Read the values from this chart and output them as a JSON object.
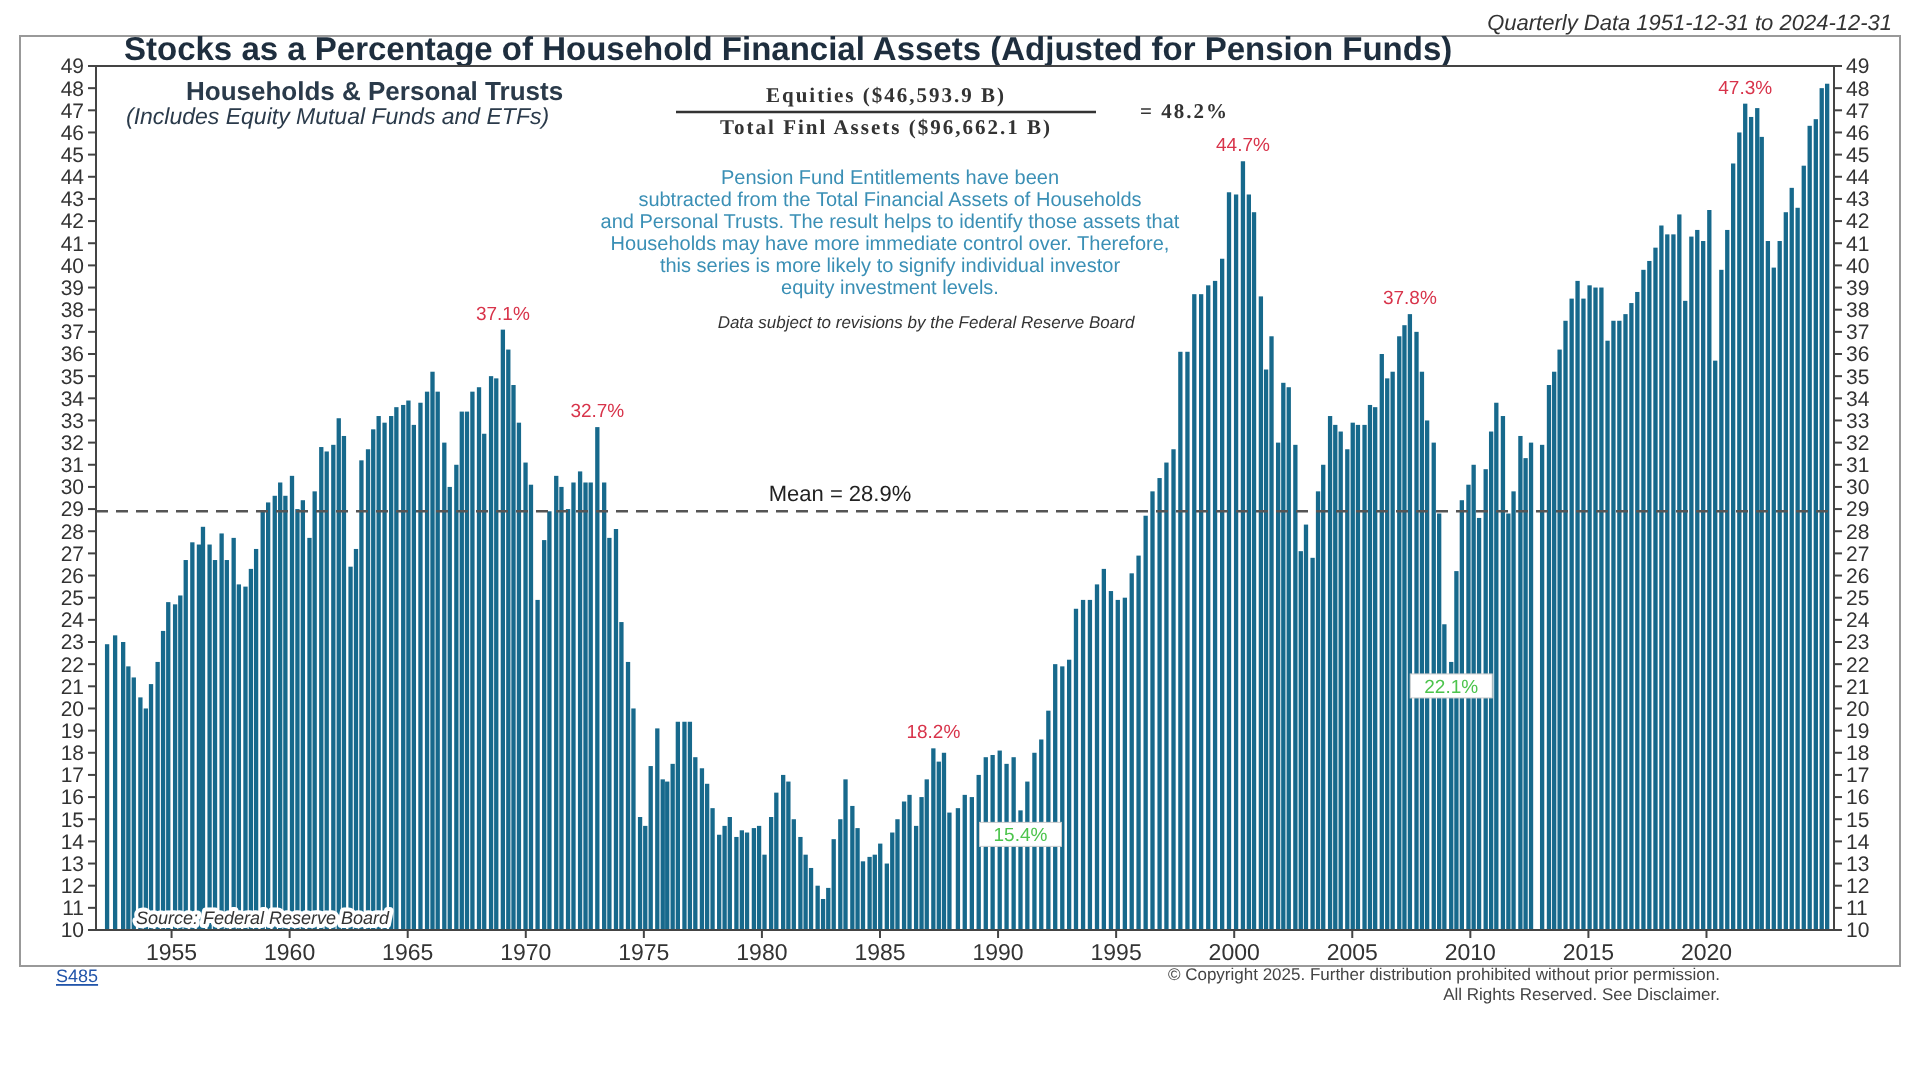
{
  "chart_data": {
    "type": "bar",
    "title": "Stocks as a Percentage of Household Financial Assets (Adjusted for Pension Funds)",
    "subtitle": "Quarterly Data 1951-12-31 to 2024-12-31",
    "x": [
      1952.27,
      1952.61,
      1952.95,
      1953.17,
      1953.4,
      1953.68,
      1953.91,
      1954.13,
      1954.41,
      1954.64,
      1954.86,
      1955.15,
      1955.37,
      1955.6,
      1955.88,
      1956.16,
      1956.33,
      1956.61,
      1956.84,
      1957.12,
      1957.34,
      1957.63,
      1957.85,
      1958.13,
      1958.36,
      1958.58,
      1958.86,
      1959.09,
      1959.37,
      1959.6,
      1959.82,
      1960.1,
      1960.33,
      1960.56,
      1960.84,
      1961.06,
      1961.34,
      1961.57,
      1961.85,
      1962.08,
      1962.3,
      1962.58,
      1962.81,
      1963.04,
      1963.32,
      1963.54,
      1963.77,
      1964.02,
      1964.3,
      1964.52,
      1964.81,
      1965.03,
      1965.26,
      1965.54,
      1965.82,
      1966.05,
      1966.27,
      1966.55,
      1966.78,
      1967.06,
      1967.29,
      1967.51,
      1967.74,
      1968.02,
      1968.24,
      1968.53,
      1968.75,
      1969.03,
      1969.26,
      1969.48,
      1969.71,
      1969.99,
      1970.22,
      1970.5,
      1970.78,
      1971.0,
      1971.29,
      1971.51,
      1971.79,
      1972.02,
      1972.3,
      1972.53,
      1972.75,
      1973.03,
      1973.32,
      1973.54,
      1973.82,
      1974.05,
      1974.33,
      1974.56,
      1974.84,
      1975.06,
      1975.29,
      1975.57,
      1975.8,
      1975.99,
      1976.22,
      1976.44,
      1976.72,
      1976.95,
      1977.18,
      1977.46,
      1977.68,
      1977.91,
      1978.19,
      1978.42,
      1978.64,
      1978.92,
      1979.15,
      1979.37,
      1979.66,
      1979.88,
      1980.11,
      1980.39,
      1980.61,
      1980.9,
      1981.12,
      1981.35,
      1981.63,
      1981.85,
      1982.08,
      1982.36,
      1982.59,
      1982.81,
      1983.04,
      1983.32,
      1983.54,
      1983.83,
      1984.05,
      1984.28,
      1984.56,
      1984.78,
      1985.01,
      1985.29,
      1985.52,
      1985.74,
      1986.02,
      1986.25,
      1986.53,
      1986.76,
      1986.98,
      1987.26,
      1987.49,
      1987.71,
      1987.94,
      1988.3,
      1988.59,
      1988.89,
      1989.18,
      1989.48,
      1989.77,
      1990.07,
      1990.36,
      1990.66,
      1990.95,
      1991.24,
      1991.54,
      1991.83,
      1992.13,
      1992.42,
      1992.72,
      1993.01,
      1993.3,
      1993.6,
      1993.89,
      1994.19,
      1994.48,
      1994.78,
      1995.07,
      1995.37,
      1995.66,
      1995.95,
      1996.25,
      1996.54,
      1996.84,
      1997.13,
      1997.43,
      1997.72,
      1998.02,
      1998.31,
      1998.6,
      1998.9,
      1999.19,
      1999.49,
      1999.78,
      2000.08,
      2000.37,
      2000.62,
      2000.84,
      2001.13,
      2001.35,
      2001.58,
      2001.86,
      2002.08,
      2002.31,
      2002.59,
      2002.82,
      2003.04,
      2003.32,
      2003.55,
      2003.77,
      2004.06,
      2004.28,
      2004.51,
      2004.79,
      2005.02,
      2005.24,
      2005.52,
      2005.75,
      2005.97,
      2006.25,
      2006.48,
      2006.71,
      2006.99,
      2007.21,
      2007.44,
      2007.72,
      2007.95,
      2008.17,
      2008.45,
      2008.68,
      2008.9,
      2009.19,
      2009.41,
      2009.64,
      2009.92,
      2010.14,
      2010.37,
      2010.65,
      2010.88,
      2011.1,
      2011.38,
      2011.61,
      2011.83,
      2012.12,
      2012.34,
      2012.57,
      2013.04,
      2013.33,
      2013.55,
      2013.78,
      2014.03,
      2014.29,
      2014.54,
      2014.79,
      2015.05,
      2015.3,
      2015.55,
      2015.81,
      2016.06,
      2016.31,
      2016.57,
      2016.82,
      2017.07,
      2017.33,
      2017.58,
      2017.84,
      2018.09,
      2018.34,
      2018.6,
      2018.85,
      2019.1,
      2019.36,
      2019.61,
      2019.86,
      2020.12,
      2020.37,
      2020.63,
      2020.88,
      2021.13,
      2021.39,
      2021.64,
      2021.89,
      2022.15,
      2022.34,
      2022.6,
      2022.85,
      2023.1,
      2023.36,
      2023.61,
      2023.86,
      2024.12,
      2024.37,
      2024.63,
      2024.88,
      2025.11
    ],
    "series": [
      {
        "color": "#17698c",
        "values": [
          22.9,
          23.3,
          23.0,
          21.9,
          21.4,
          20.5,
          20.0,
          21.1,
          22.1,
          23.5,
          24.8,
          24.7,
          25.1,
          26.7,
          27.5,
          27.4,
          28.2,
          27.4,
          26.7,
          27.9,
          26.7,
          27.7,
          25.6,
          25.5,
          26.3,
          27.2,
          28.9,
          29.3,
          29.6,
          30.2,
          29.6,
          30.5,
          29.0,
          29.4,
          27.7,
          29.8,
          31.8,
          31.6,
          31.9,
          33.1,
          32.3,
          26.4,
          27.2,
          31.2,
          31.7,
          32.6,
          33.2,
          32.9,
          33.2,
          33.6,
          33.7,
          33.9,
          32.8,
          33.8,
          34.3,
          35.2,
          34.3,
          32.0,
          30.0,
          31.0,
          33.4,
          33.4,
          34.3,
          34.5,
          32.4,
          35.0,
          34.9,
          37.1,
          36.2,
          34.6,
          32.9,
          31.1,
          30.1,
          24.9,
          27.6,
          28.9,
          30.5,
          30.0,
          29.0,
          30.2,
          30.7,
          30.2,
          30.2,
          32.7,
          30.2,
          27.7,
          28.1,
          23.9,
          22.1,
          20.0,
          15.1,
          14.7,
          17.4,
          19.1,
          16.8,
          16.7,
          17.5,
          19.4,
          19.4,
          19.4,
          17.8,
          17.3,
          16.6,
          15.5,
          14.3,
          14.7,
          15.1,
          14.2,
          14.5,
          14.4,
          14.6,
          14.7,
          13.4,
          15.1,
          16.2,
          17.0,
          16.7,
          15.0,
          14.2,
          13.4,
          12.8,
          12.0,
          11.4,
          11.9,
          14.1,
          15.0,
          16.8,
          15.6,
          14.6,
          13.1,
          13.3,
          13.4,
          13.9,
          13.0,
          14.4,
          15.0,
          15.8,
          16.1,
          14.7,
          16.0,
          16.8,
          18.2,
          17.6,
          18.0,
          15.3,
          15.5,
          16.1,
          16.0,
          17.0,
          17.8,
          17.9,
          18.1,
          17.5,
          17.8,
          15.4,
          16.7,
          18.0,
          18.6,
          19.9,
          22.0,
          21.9,
          22.2,
          24.5,
          24.9,
          24.9,
          25.6,
          26.3,
          25.3,
          24.9,
          25.0,
          26.1,
          26.9,
          28.7,
          29.8,
          30.4,
          31.1,
          31.7,
          36.1,
          36.1,
          38.7,
          38.7,
          39.1,
          39.3,
          40.3,
          43.3,
          43.2,
          44.7,
          43.2,
          42.4,
          38.6,
          35.3,
          36.8,
          32.0,
          34.7,
          34.5,
          31.9,
          27.1,
          28.3,
          26.8,
          29.8,
          31.0,
          33.2,
          32.8,
          32.5,
          31.7,
          32.9,
          32.8,
          32.8,
          33.7,
          33.6,
          36.0,
          34.9,
          35.2,
          36.8,
          37.3,
          37.8,
          37.0,
          35.2,
          33.0,
          32.0,
          28.8,
          23.8,
          22.1,
          26.2,
          29.4,
          30.1,
          31.0,
          28.6,
          30.8,
          32.5,
          33.8,
          33.2,
          28.8,
          29.8,
          32.3,
          31.3,
          32.0,
          31.9,
          34.6,
          35.2,
          36.2,
          37.5,
          38.5,
          39.3,
          38.5,
          39.1,
          39.0,
          39.0,
          36.6,
          37.5,
          37.5,
          37.8,
          38.3,
          38.8,
          39.8,
          40.2,
          40.8,
          41.8,
          41.4,
          41.4,
          42.3,
          38.4,
          41.3,
          41.6,
          41.1,
          42.5,
          35.7,
          39.8,
          41.6,
          44.6,
          46.0,
          47.3,
          46.7,
          47.1,
          45.8,
          41.1,
          39.9,
          41.1,
          42.4,
          43.5,
          42.6,
          44.5,
          46.3,
          46.6,
          48.0,
          48.2
        ]
      }
    ],
    "xlim": [
      1951.8,
      2025.4
    ],
    "xticks": [
      1955,
      1960,
      1965,
      1970,
      1975,
      1980,
      1985,
      1990,
      1995,
      2000,
      2005,
      2010,
      2015,
      2020
    ],
    "ylim": [
      10,
      49
    ],
    "yticks": [
      10,
      11,
      12,
      13,
      14,
      15,
      16,
      17,
      18,
      19,
      20,
      21,
      22,
      23,
      24,
      25,
      26,
      27,
      28,
      29,
      30,
      31,
      32,
      33,
      34,
      35,
      36,
      37,
      38,
      39,
      40,
      41,
      42,
      43,
      44,
      45,
      46,
      47,
      48,
      49
    ],
    "y2lim": [
      10,
      49
    ],
    "y2ticks": [
      10,
      11,
      12,
      13,
      14,
      15,
      16,
      17,
      18,
      19,
      20,
      21,
      22,
      23,
      24,
      25,
      26,
      27,
      28,
      29,
      30,
      31,
      32,
      33,
      34,
      35,
      36,
      37,
      38,
      39,
      40,
      41,
      42,
      43,
      44,
      45,
      46,
      47,
      48,
      49
    ],
    "ref_lines": [
      {
        "axis": "y",
        "value": 28.9,
        "label": "Mean = 28.9%",
        "line_style": "dashed",
        "color": "#555555"
      }
    ],
    "annotations": [
      "Households & Personal Trusts",
      "(Includes Equity Mutual Funds and ETFs)",
      "Equities ($46,593.9 B)",
      "Total Finl Assets ($96,662.1 B)",
      "= 48.2%",
      "Pension Fund Entitlements have been\nsubtracted from the Total Financial Assets of Households\nand Personal Trusts. The result helps to identify those assets that\nHouseholds may have more immediate control over. Therefore,\nthis series is more likely to signify individual investor\nequity investment levels.",
      "Data subject to revisions by the Federal Reserve Board",
      "Source: Federal Reserve Board",
      "© Copyright 2025. Further distribution prohibited without prior permission.\nAll Rights Reserved. See Disclaimer.",
      "S485",
      {
        "text": "37.1%",
        "x": 1969.03,
        "y": 37.1
      },
      {
        "text": "32.7%",
        "x": 1973.03,
        "y": 32.7
      },
      {
        "text": "18.2%",
        "x": 1987.26,
        "y": 18.2
      },
      {
        "text": "15.4%",
        "x": 1990.95,
        "y": 15.4
      },
      {
        "text": "44.7%",
        "x": 2000.37,
        "y": 44.7
      },
      {
        "text": "37.8%",
        "x": 2007.44,
        "y": 37.8
      },
      {
        "text": "22.1%",
        "x": 2009.19,
        "y": 22.1
      },
      {
        "text": "47.3%",
        "x": 2021.64,
        "y": 47.3
      }
    ]
  }
}
